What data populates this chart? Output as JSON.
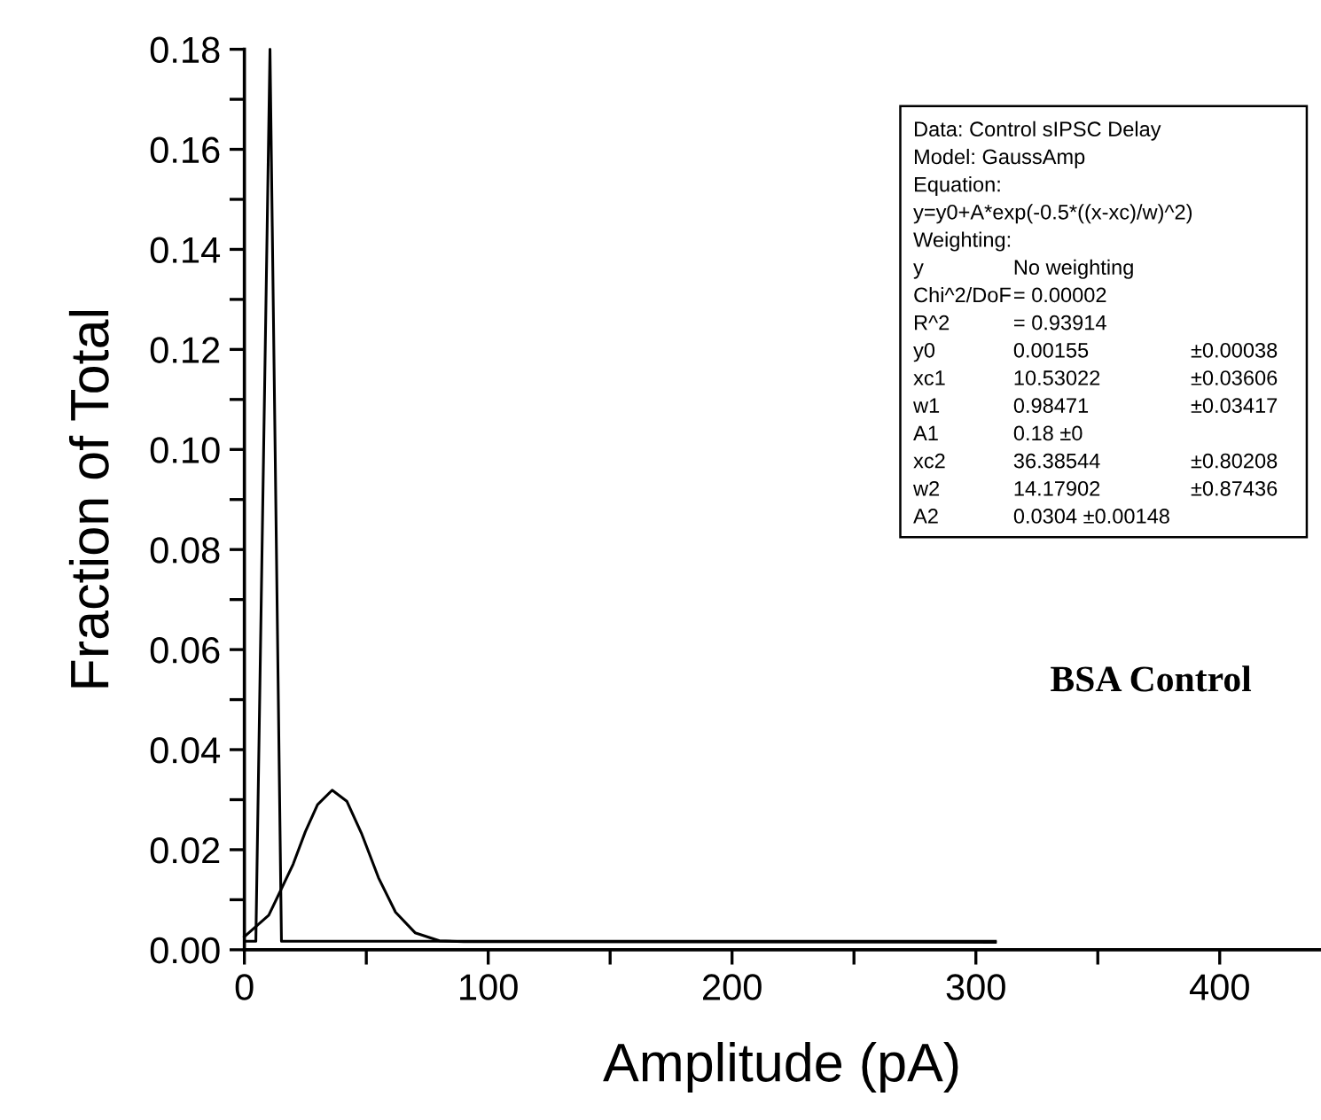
{
  "chart_data": {
    "type": "line",
    "xlabel": "Amplitude (pA)",
    "ylabel": "Fraction of Total",
    "series": [
      {
        "color": "#000000",
        "x": [
          0,
          4.7,
          10.5,
          15.2,
          308
        ],
        "values": [
          0.0017,
          0.0017,
          0.18,
          0.0017,
          0.0017
        ]
      },
      {
        "color": "#000000",
        "x": [
          0,
          10,
          20,
          25,
          30,
          36,
          42,
          48,
          55,
          62,
          70,
          80,
          90,
          308
        ],
        "values": [
          0.0026,
          0.0069,
          0.0171,
          0.0236,
          0.029,
          0.0319,
          0.0297,
          0.0233,
          0.0144,
          0.0075,
          0.0034,
          0.0018,
          0.0016,
          0.0015
        ]
      }
    ],
    "xlim": [
      0,
      441
    ],
    "ylim": [
      0,
      0.18
    ],
    "xticks": [
      0,
      {
        "value": 50,
        "label": null
      },
      100,
      {
        "value": 150,
        "label": null
      },
      200,
      {
        "value": 250,
        "label": null
      },
      300,
      {
        "value": 350,
        "label": null
      },
      400
    ],
    "yticks": [
      {
        "value": 0,
        "label": "0.00"
      },
      {
        "value": 0.01,
        "label": null
      },
      {
        "value": 0.02,
        "label": "0.02"
      },
      {
        "value": 0.03,
        "label": null
      },
      {
        "value": 0.04,
        "label": "0.04"
      },
      {
        "value": 0.05,
        "label": null
      },
      {
        "value": 0.06,
        "label": "0.06"
      },
      {
        "value": 0.07,
        "label": null
      },
      {
        "value": 0.08,
        "label": "0.08"
      },
      {
        "value": 0.09,
        "label": null
      },
      {
        "value": 0.1,
        "label": "0.10"
      },
      {
        "value": 0.11,
        "label": null
      },
      {
        "value": 0.12,
        "label": "0.12"
      },
      {
        "value": 0.13,
        "label": null
      },
      {
        "value": 0.14,
        "label": "0.14"
      },
      {
        "value": 0.15,
        "label": null
      },
      {
        "value": 0.16,
        "label": "0.16"
      },
      {
        "value": 0.17,
        "label": null
      },
      {
        "value": 0.18,
        "label": "0.18"
      }
    ],
    "grid": false,
    "legend": false,
    "marker": "none",
    "line_style": "solid",
    "annotations": [
      "Data: Control sIPSC Delay",
      "Model: GaussAmp",
      "Equation:",
      "y=y0+A*exp(-0.5*((x-xc)/w)^2)",
      "Weighting:",
      "y   No weighting",
      "Chi^2/DoF   = 0.00002",
      "R^2   = 0.93914",
      "y0   0.00155   ±0.00038",
      "xc1   10.53022   ±0.03606",
      "w1   0.98471   ±0.03417",
      "A1   0.18 ±0",
      "xc2   36.38544   ±0.80208",
      "w2   14.17902   ±0.87436",
      "A2   0.0304 ±0.00148",
      "BSA Control"
    ]
  }
}
